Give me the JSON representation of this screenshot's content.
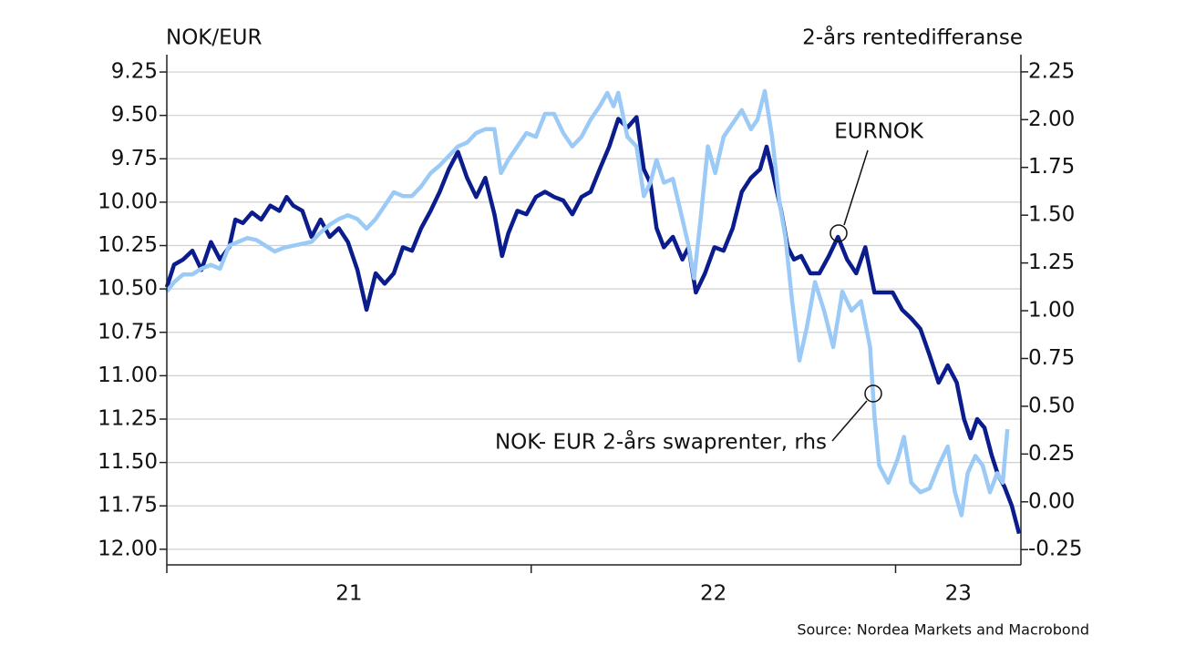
{
  "chart_data": {
    "type": "line",
    "y_label": "NOK/EUR",
    "y2_label": "2-års rentedifferanse",
    "source": "Source: Nordea Markets and Macrobond",
    "annotations": [
      "EURNOK",
      "NOK- EUR 2-års swaprenter, rhs"
    ],
    "xlim": [
      2021,
      2023.344
    ],
    "xticks": [
      {
        "value": 2021.5,
        "label": "21"
      },
      {
        "value": 2022.5,
        "label": "22"
      },
      {
        "value": 2023.172,
        "label": "23"
      }
    ],
    "x_boundaries": [
      2021,
      2022,
      2023
    ],
    "ylim": [
      9.15,
      12.09
    ],
    "y_inverted": true,
    "yticks": [
      9.25,
      {
        "value": 9.5,
        "label": "9.50"
      },
      9.75,
      {
        "value": 10,
        "label": "10.00"
      },
      10.25,
      {
        "value": 10.5,
        "label": "10.50"
      },
      10.75,
      {
        "value": 11,
        "label": "11.00"
      },
      11.25,
      {
        "value": 11.5,
        "label": "11.50"
      },
      11.75,
      {
        "value": 12,
        "label": "12.00"
      }
    ],
    "y2lim": [
      -0.33,
      2.34
    ],
    "y2ticks": [
      2.25,
      {
        "value": 2,
        "label": "2.00"
      },
      1.75,
      {
        "value": 1.5,
        "label": "1.50"
      },
      1.25,
      {
        "value": 1,
        "label": "1.00"
      },
      0.75,
      {
        "value": 0.5,
        "label": "0.50"
      },
      0.25,
      {
        "value": 0,
        "label": "0.00"
      },
      -0.25
    ],
    "grid": true,
    "series": [
      {
        "name": "EURNOK",
        "color": "#0b1c8c",
        "axis": "y",
        "x": [
          2021,
          2021.02,
          2021.045,
          2021.07,
          2021.095,
          2021.121,
          2021.146,
          2021.171,
          2021.188,
          2021.209,
          2021.234,
          2021.259,
          2021.284,
          2021.309,
          2021.329,
          2021.347,
          2021.372,
          2021.397,
          2021.422,
          2021.447,
          2021.472,
          2021.497,
          2021.523,
          2021.548,
          2021.573,
          2021.598,
          2021.623,
          2021.648,
          2021.673,
          2021.698,
          2021.724,
          2021.749,
          2021.774,
          2021.799,
          2021.824,
          2021.849,
          2021.874,
          2021.899,
          2021.92,
          2021.937,
          2021.962,
          2021.987,
          2022.013,
          2022.038,
          2022.063,
          2022.088,
          2022.113,
          2022.138,
          2022.163,
          2022.188,
          2022.214,
          2022.239,
          2022.264,
          2022.289,
          2022.309,
          2022.327,
          2022.344,
          2022.364,
          2022.389,
          2022.415,
          2022.432,
          2022.452,
          2022.477,
          2022.503,
          2022.528,
          2022.553,
          2022.578,
          2022.603,
          2022.628,
          2022.646,
          2022.666,
          2022.686,
          2022.704,
          2022.721,
          2022.741,
          2022.766,
          2022.791,
          2022.817,
          2022.842,
          2022.867,
          2022.892,
          2022.917,
          2022.942,
          2022.967,
          2022.992,
          2023.018,
          2023.043,
          2023.068,
          2023.093,
          2023.118,
          2023.143,
          2023.168,
          2023.188,
          2023.206,
          2023.224,
          2023.244,
          2023.264,
          2023.281,
          2023.299,
          2023.319,
          2023.339
        ],
        "values": [
          10.49,
          10.36,
          10.33,
          10.28,
          10.39,
          10.23,
          10.33,
          10.26,
          10.1,
          10.12,
          10.06,
          10.1,
          10.02,
          10.05,
          9.97,
          10.02,
          10.05,
          10.2,
          10.1,
          10.2,
          10.15,
          10.23,
          10.39,
          10.62,
          10.41,
          10.47,
          10.41,
          10.26,
          10.28,
          10.15,
          10.05,
          9.94,
          9.81,
          9.71,
          9.86,
          9.97,
          9.86,
          10.07,
          10.31,
          10.18,
          10.05,
          10.07,
          9.97,
          9.94,
          9.97,
          9.99,
          10.07,
          9.97,
          9.94,
          9.81,
          9.68,
          9.52,
          9.57,
          9.51,
          9.81,
          9.89,
          10.15,
          10.26,
          10.2,
          10.33,
          10.26,
          10.52,
          10.41,
          10.26,
          10.28,
          10.15,
          9.94,
          9.86,
          9.81,
          9.68,
          9.86,
          10.05,
          10.26,
          10.33,
          10.31,
          10.41,
          10.41,
          10.31,
          10.2,
          10.33,
          10.41,
          10.26,
          10.52,
          10.52,
          10.52,
          10.62,
          10.67,
          10.73,
          10.88,
          11.04,
          10.94,
          11.04,
          11.25,
          11.36,
          11.25,
          11.3,
          11.46,
          11.57,
          11.64,
          11.75,
          11.91
        ]
      },
      {
        "name": "NOK- EUR 2-års swaprenter, rhs",
        "color": "#9ccaf6",
        "axis": "y2",
        "x": [
          2021,
          2021.02,
          2021.045,
          2021.07,
          2021.095,
          2021.121,
          2021.146,
          2021.171,
          2021.196,
          2021.221,
          2021.246,
          2021.271,
          2021.296,
          2021.322,
          2021.347,
          2021.372,
          2021.397,
          2021.422,
          2021.447,
          2021.472,
          2021.497,
          2021.523,
          2021.548,
          2021.573,
          2021.598,
          2021.623,
          2021.648,
          2021.673,
          2021.698,
          2021.724,
          2021.749,
          2021.774,
          2021.799,
          2021.824,
          2021.849,
          2021.874,
          2021.899,
          2021.917,
          2021.937,
          2021.962,
          2021.987,
          2022.013,
          2022.038,
          2022.063,
          2022.088,
          2022.113,
          2022.138,
          2022.163,
          2022.188,
          2022.209,
          2022.226,
          2022.239,
          2022.264,
          2022.289,
          2022.309,
          2022.327,
          2022.344,
          2022.364,
          2022.389,
          2022.415,
          2022.432,
          2022.447,
          2022.465,
          2022.485,
          2022.505,
          2022.528,
          2022.553,
          2022.578,
          2022.603,
          2022.621,
          2022.641,
          2022.661,
          2022.681,
          2022.698,
          2022.716,
          2022.736,
          2022.756,
          2022.779,
          2022.804,
          2022.829,
          2022.854,
          2022.879,
          2022.905,
          2022.93,
          2022.942,
          2022.955,
          2022.98,
          2023.005,
          2023.023,
          2023.043,
          2023.068,
          2023.093,
          2023.118,
          2023.143,
          2023.163,
          2023.181,
          2023.198,
          2023.219,
          2023.239,
          2023.259,
          2023.279,
          2023.294,
          2023.307
        ],
        "values": [
          1.1,
          1.15,
          1.19,
          1.19,
          1.22,
          1.24,
          1.22,
          1.34,
          1.36,
          1.38,
          1.37,
          1.34,
          1.31,
          1.33,
          1.34,
          1.35,
          1.36,
          1.41,
          1.45,
          1.48,
          1.5,
          1.48,
          1.43,
          1.48,
          1.55,
          1.62,
          1.6,
          1.6,
          1.65,
          1.72,
          1.76,
          1.81,
          1.86,
          1.88,
          1.93,
          1.95,
          1.95,
          1.72,
          1.79,
          1.86,
          1.93,
          1.91,
          2.03,
          2.03,
          1.93,
          1.86,
          1.91,
          2.0,
          2.07,
          2.14,
          2.07,
          2.14,
          1.91,
          1.86,
          1.6,
          1.67,
          1.79,
          1.67,
          1.69,
          1.48,
          1.34,
          1.17,
          1.48,
          1.86,
          1.72,
          1.91,
          1.98,
          2.05,
          1.95,
          2.0,
          2.15,
          1.91,
          1.57,
          1.38,
          1.05,
          0.74,
          0.91,
          1.15,
          1.0,
          0.81,
          1.1,
          1.0,
          1.05,
          0.81,
          0.45,
          0.19,
          0.1,
          0.22,
          0.34,
          0.1,
          0.05,
          0.07,
          0.19,
          0.29,
          0.05,
          -0.07,
          0.15,
          0.24,
          0.19,
          0.05,
          0.15,
          0.1,
          0.38
        ]
      }
    ]
  }
}
